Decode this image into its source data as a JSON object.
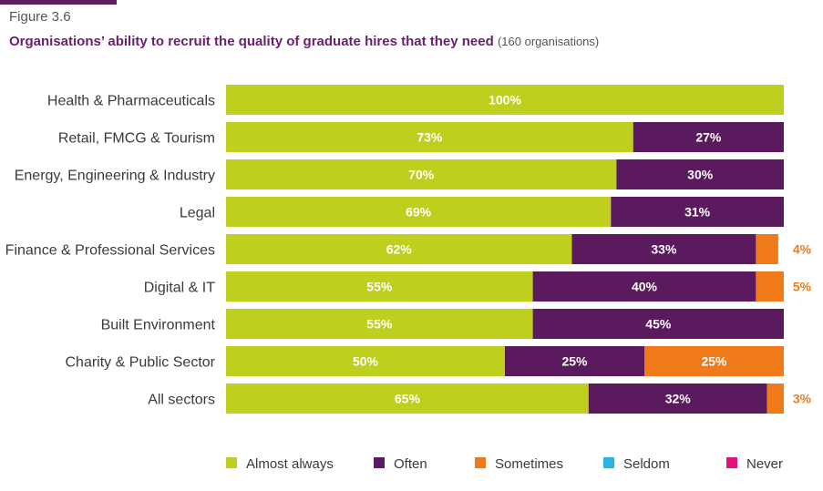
{
  "figure_label": "Figure 3.6",
  "title": "Organisations’ ability to recruit the quality of graduate hires that they need",
  "subtitle": "(160 organisations)",
  "colors": {
    "almost_always": "#bfcf1e",
    "often": "#5b1a5e",
    "sometimes": "#f07a1a",
    "seldom": "#2ab4e2",
    "never": "#e0117f",
    "outside_label": "#f07a1a"
  },
  "chart_data": {
    "type": "bar",
    "orientation": "horizontal",
    "stacked": true,
    "categories": [
      "Health & Pharmaceuticals",
      "Retail, FMCG & Tourism",
      "Energy, Engineering & Industry",
      "Legal",
      "Finance & Professional Services",
      "Digital & IT",
      "Built Environment",
      "Charity & Public Sector",
      "All sectors"
    ],
    "series": [
      {
        "name": "Almost always",
        "key": "almost_always",
        "values": [
          100,
          73,
          70,
          69,
          62,
          55,
          55,
          50,
          65
        ]
      },
      {
        "name": "Often",
        "key": "often",
        "values": [
          0,
          27,
          30,
          31,
          33,
          40,
          45,
          25,
          32
        ]
      },
      {
        "name": "Sometimes",
        "key": "sometimes",
        "values": [
          0,
          0,
          0,
          0,
          4,
          5,
          0,
          25,
          3
        ]
      },
      {
        "name": "Seldom",
        "key": "seldom",
        "values": [
          0,
          0,
          0,
          0,
          0,
          0,
          0,
          0,
          0
        ]
      },
      {
        "name": "Never",
        "key": "never",
        "values": [
          0,
          0,
          0,
          0,
          0,
          0,
          0,
          0,
          0
        ]
      }
    ],
    "xlim": [
      0,
      100
    ],
    "unit": "%",
    "grid": false,
    "legend_position": "bottom"
  }
}
